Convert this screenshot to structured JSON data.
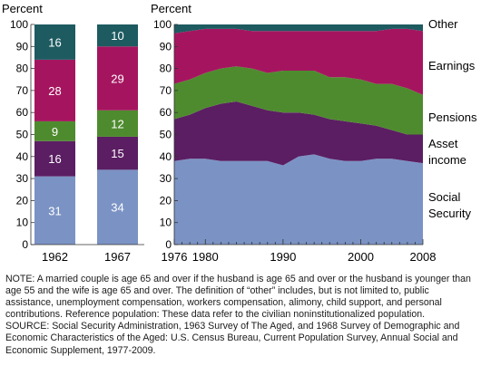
{
  "chart_data": [
    {
      "type": "bar",
      "stacked": true,
      "ylabel": "Percent",
      "ylim": [
        0,
        100
      ],
      "yticks": [
        0,
        10,
        20,
        30,
        40,
        50,
        60,
        70,
        80,
        90,
        100
      ],
      "categories": [
        "1962",
        "1967"
      ],
      "series": [
        {
          "name": "Social Security",
          "values": [
            31,
            34
          ],
          "color": "#7b93c4"
        },
        {
          "name": "Asset income",
          "values": [
            16,
            15
          ],
          "color": "#5b1e62"
        },
        {
          "name": "Pensions",
          "values": [
            9,
            12
          ],
          "color": "#4e8b2e"
        },
        {
          "name": "Earnings",
          "values": [
            28,
            29
          ],
          "color": "#a5155f"
        },
        {
          "name": "Other",
          "values": [
            16,
            10
          ],
          "color": "#1e5b61"
        }
      ]
    },
    {
      "type": "area",
      "stacked": true,
      "ylabel": "Percent",
      "ylim": [
        0,
        100
      ],
      "yticks": [
        0,
        10,
        20,
        30,
        40,
        50,
        60,
        70,
        80,
        90,
        100
      ],
      "xlim": [
        1976,
        2008
      ],
      "xticks": [
        "1976",
        "1980",
        "1990",
        "2000",
        "2008"
      ],
      "x": [
        1976,
        1978,
        1980,
        1982,
        1984,
        1986,
        1988,
        1990,
        1992,
        1994,
        1996,
        1998,
        2000,
        2002,
        2004,
        2006,
        2008
      ],
      "series": [
        {
          "name": "Social Security",
          "labels": [
            "Social",
            "Security"
          ],
          "color": "#7b93c4",
          "values": [
            38,
            39,
            39,
            38,
            38,
            38,
            38,
            36,
            40,
            41,
            39,
            38,
            38,
            39,
            39,
            38,
            37
          ]
        },
        {
          "name": "Asset income",
          "labels": [
            "Asset",
            "income"
          ],
          "color": "#5b1e62",
          "values": [
            19,
            20,
            23,
            26,
            27,
            25,
            23,
            24,
            20,
            18,
            18,
            18,
            17,
            15,
            13,
            12,
            13
          ]
        },
        {
          "name": "Pensions",
          "labels": [
            "Pensions"
          ],
          "color": "#4e8b2e",
          "values": [
            16,
            16,
            16,
            16,
            16,
            17,
            17,
            19,
            19,
            20,
            19,
            20,
            20,
            19,
            21,
            21,
            18
          ]
        },
        {
          "name": "Earnings",
          "labels": [
            "Earnings"
          ],
          "color": "#a5155f",
          "values": [
            23,
            22,
            20,
            18,
            17,
            17,
            19,
            18,
            18,
            18,
            21,
            21,
            22,
            24,
            25,
            27,
            29
          ]
        },
        {
          "name": "Other",
          "labels": [
            "Other"
          ],
          "color": "#1e5b61",
          "values": [
            4,
            3,
            2,
            2,
            2,
            3,
            3,
            3,
            3,
            3,
            3,
            3,
            3,
            3,
            2,
            2,
            3
          ]
        }
      ]
    }
  ],
  "notes": {
    "note": "NOTE: A married couple is age 65 and over if the husband is age 65 and over or the husband is younger than age 55 and the wife is age 65 and over. The definition of “other” includes, but is not limited to, public assistance, unemployment compensation, workers compensation, alimony, child support, and personal contributions. Reference population: These data refer to the civilian noninstitutionalized population.",
    "source": "SOURCE: Social Security Administration, 1963 Survey of The Aged, and 1968 Survey of Demographic and Economic Characteristics of the Aged: U.S. Census Bureau, Current Population Survey, Annual Social and Economic Supplement, 1977-2009."
  }
}
